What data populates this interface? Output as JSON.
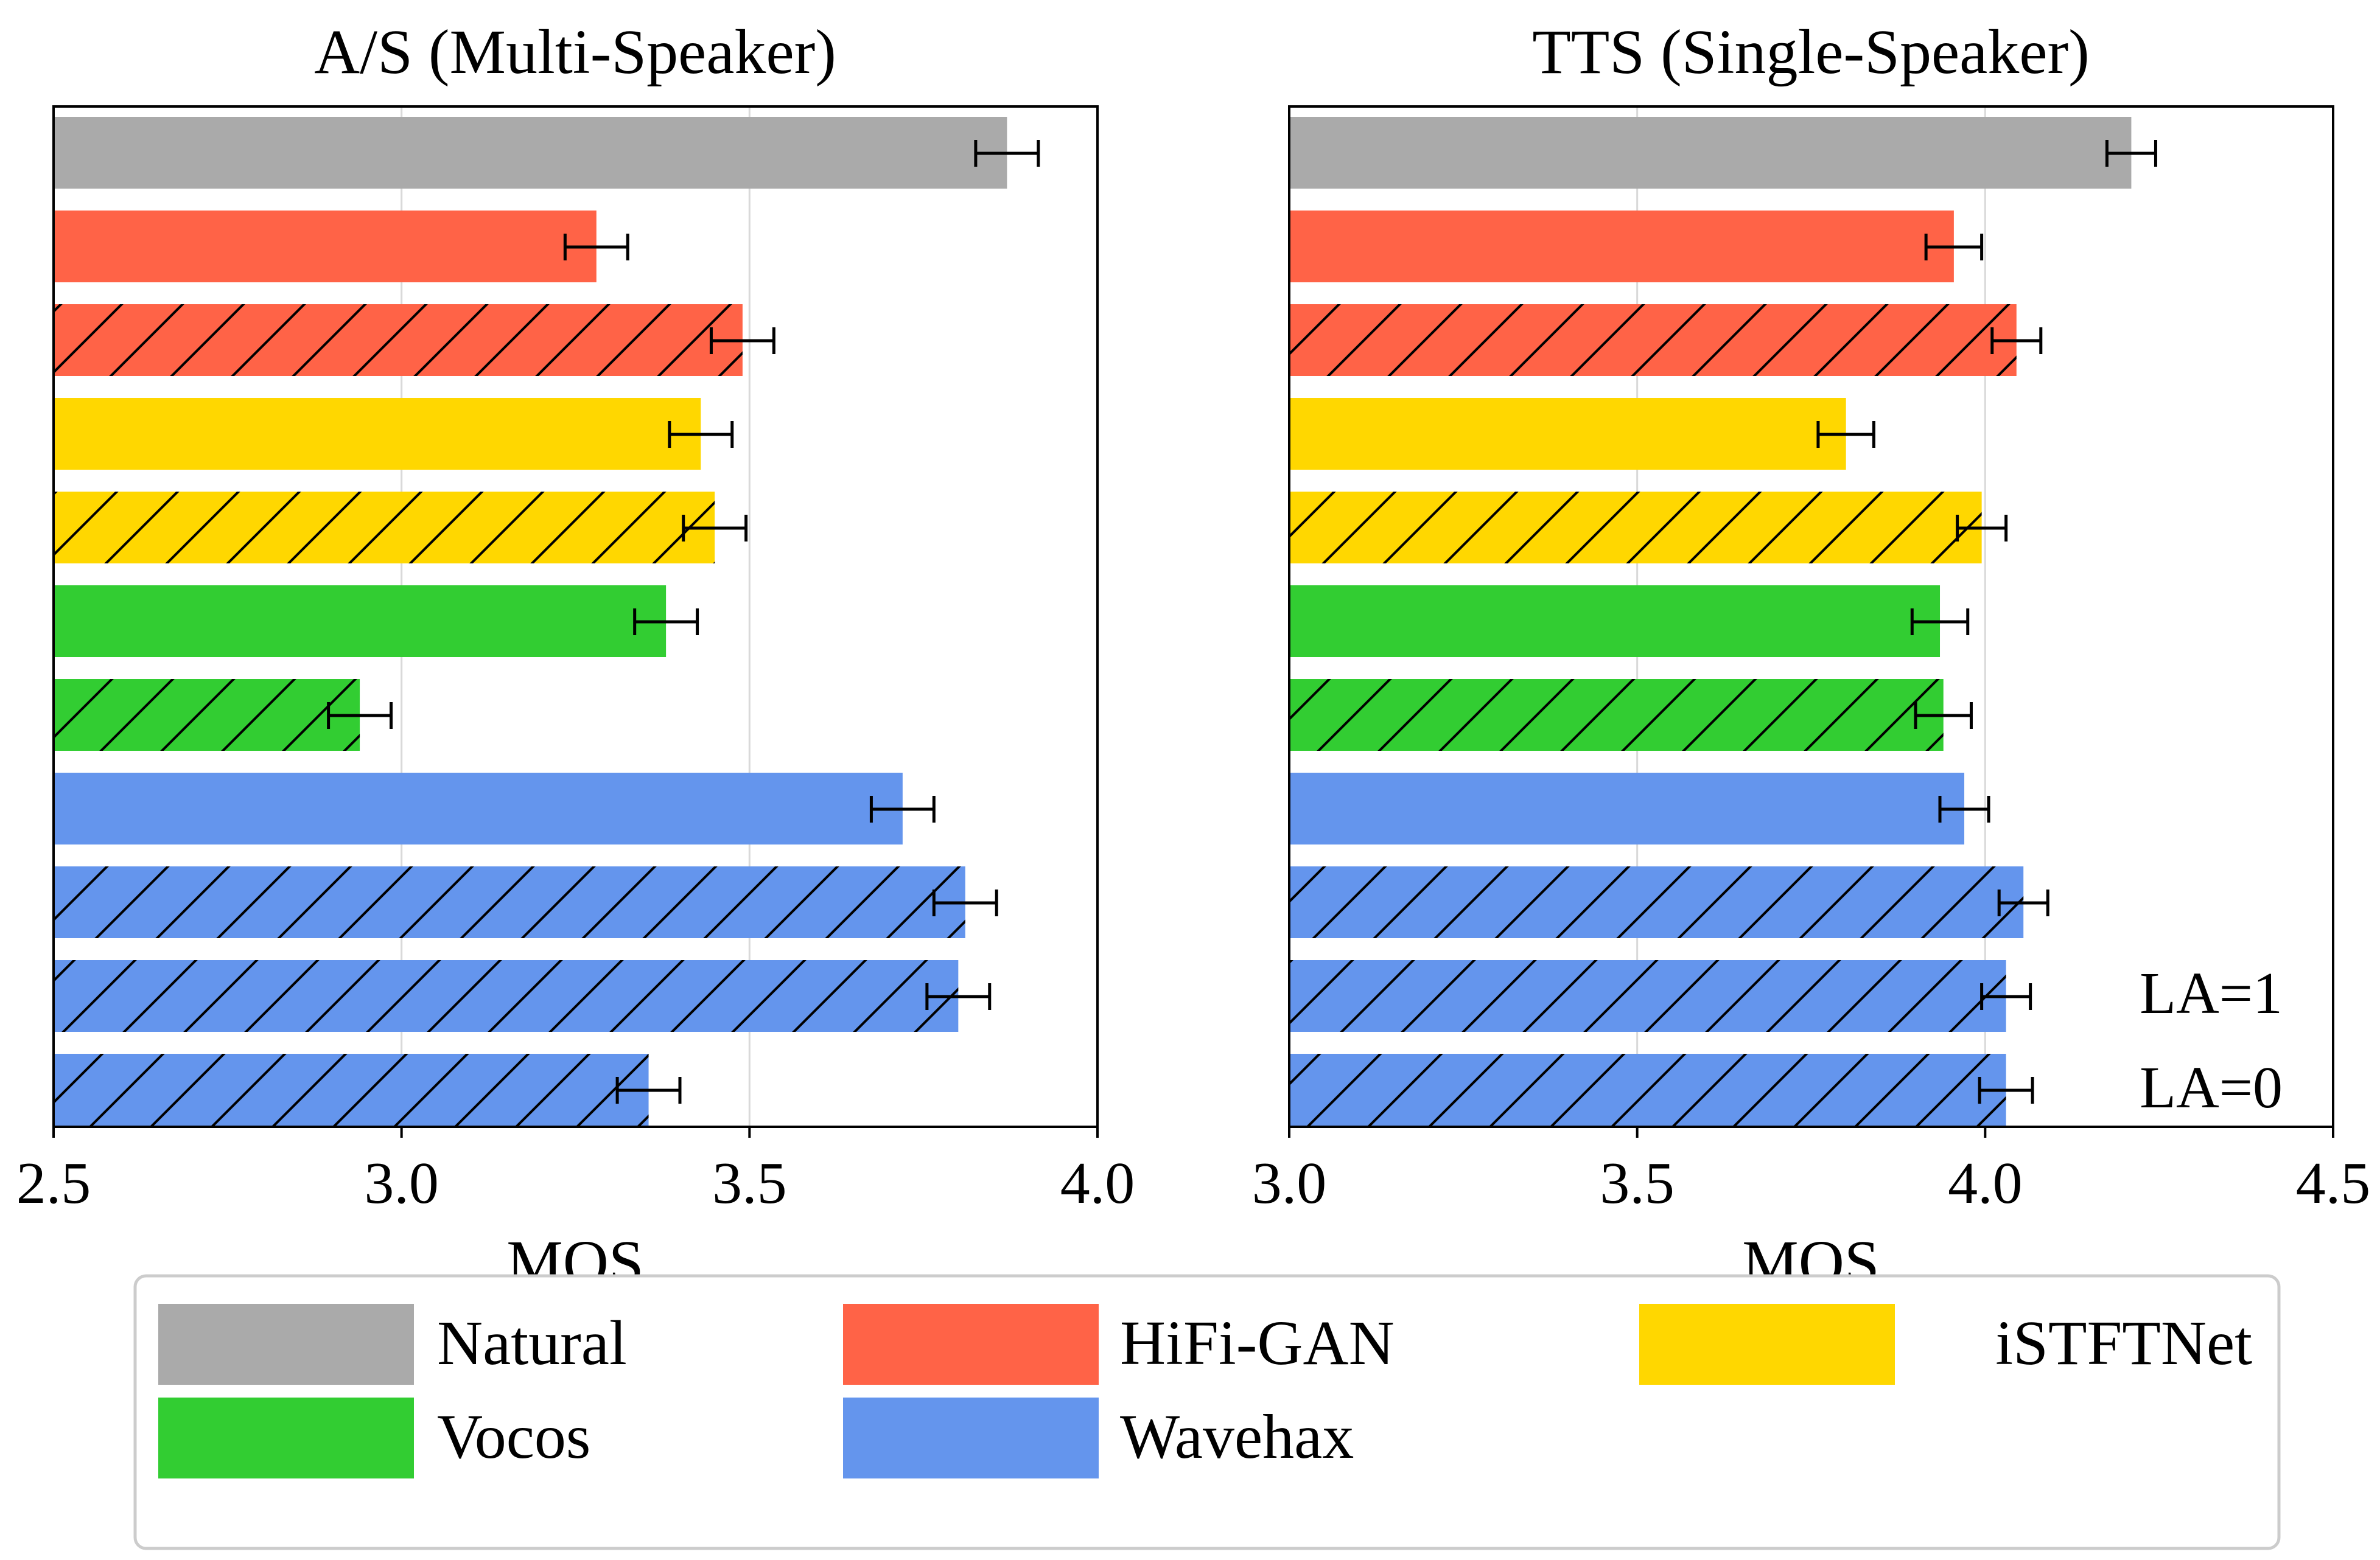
{
  "chart_data": [
    {
      "type": "bar",
      "orientation": "horizontal",
      "title": "A/S (Multi-Speaker)",
      "xlabel": "MOS",
      "ylabel": "",
      "xlim": [
        2.5,
        4.0
      ],
      "xticks": [
        "2.5",
        "3.0",
        "3.5",
        "4.0"
      ],
      "grid": "vertical",
      "bars": [
        {
          "method": "Natural",
          "hatched": false,
          "value": 3.87,
          "error": 0.045
        },
        {
          "method": "HiFi-GAN",
          "hatched": false,
          "value": 3.28,
          "error": 0.045
        },
        {
          "method": "HiFi-GAN",
          "hatched": true,
          "value": 3.49,
          "error": 0.045
        },
        {
          "method": "iSTFTNet",
          "hatched": false,
          "value": 3.43,
          "error": 0.045
        },
        {
          "method": "iSTFTNet",
          "hatched": true,
          "value": 3.45,
          "error": 0.045
        },
        {
          "method": "Vocos",
          "hatched": false,
          "value": 3.38,
          "error": 0.045
        },
        {
          "method": "Vocos",
          "hatched": true,
          "value": 2.94,
          "error": 0.045
        },
        {
          "method": "Wavehax",
          "hatched": false,
          "value": 3.72,
          "error": 0.045
        },
        {
          "method": "Wavehax",
          "hatched": true,
          "value": 3.81,
          "error": 0.045
        },
        {
          "method": "Wavehax",
          "hatched": true,
          "value": 3.8,
          "error": 0.045
        },
        {
          "method": "Wavehax",
          "hatched": true,
          "value": 3.355,
          "error": 0.045
        }
      ]
    },
    {
      "type": "bar",
      "orientation": "horizontal",
      "title": "TTS (Single-Speaker)",
      "xlabel": "MOS",
      "ylabel": "",
      "xlim": [
        3.0,
        4.5
      ],
      "xticks": [
        "3.0",
        "3.5",
        "4.0",
        "4.5"
      ],
      "grid": "vertical",
      "bars": [
        {
          "method": "Natural",
          "hatched": false,
          "value": 4.21,
          "error": 0.035
        },
        {
          "method": "HiFi-GAN",
          "hatched": false,
          "value": 3.955,
          "error": 0.04
        },
        {
          "method": "HiFi-GAN",
          "hatched": true,
          "value": 4.045,
          "error": 0.035
        },
        {
          "method": "iSTFTNet",
          "hatched": false,
          "value": 3.8,
          "error": 0.04
        },
        {
          "method": "iSTFTNet",
          "hatched": true,
          "value": 3.995,
          "error": 0.035
        },
        {
          "method": "Vocos",
          "hatched": false,
          "value": 3.935,
          "error": 0.04
        },
        {
          "method": "Vocos",
          "hatched": true,
          "value": 3.94,
          "error": 0.04
        },
        {
          "method": "Wavehax",
          "hatched": false,
          "value": 3.97,
          "error": 0.035
        },
        {
          "method": "Wavehax",
          "hatched": true,
          "value": 4.055,
          "error": 0.035
        },
        {
          "method": "Wavehax",
          "hatched": true,
          "value": 4.03,
          "error": 0.035
        },
        {
          "method": "Wavehax",
          "hatched": true,
          "value": 4.03,
          "error": 0.038
        }
      ],
      "annotations": [
        "LA=1",
        "LA=0"
      ]
    }
  ],
  "legend": {
    "placement": "bottom",
    "items": [
      {
        "label": "Natural",
        "color": "#aaaaaa"
      },
      {
        "label": "HiFi-GAN",
        "color": "#ff6347"
      },
      {
        "label": "iSTFTNet",
        "color": "#ffd700"
      },
      {
        "label": "Vocos",
        "color": "#32cd32"
      },
      {
        "label": "Wavehax",
        "color": "#6495ed"
      }
    ]
  },
  "colors": {
    "Natural": "#aaaaaa",
    "HiFi-GAN": "#ff6347",
    "iSTFTNet": "#ffd700",
    "Vocos": "#32cd32",
    "Wavehax": "#6495ed",
    "grid": "#d9d9d9",
    "errorbar": "#000000"
  }
}
